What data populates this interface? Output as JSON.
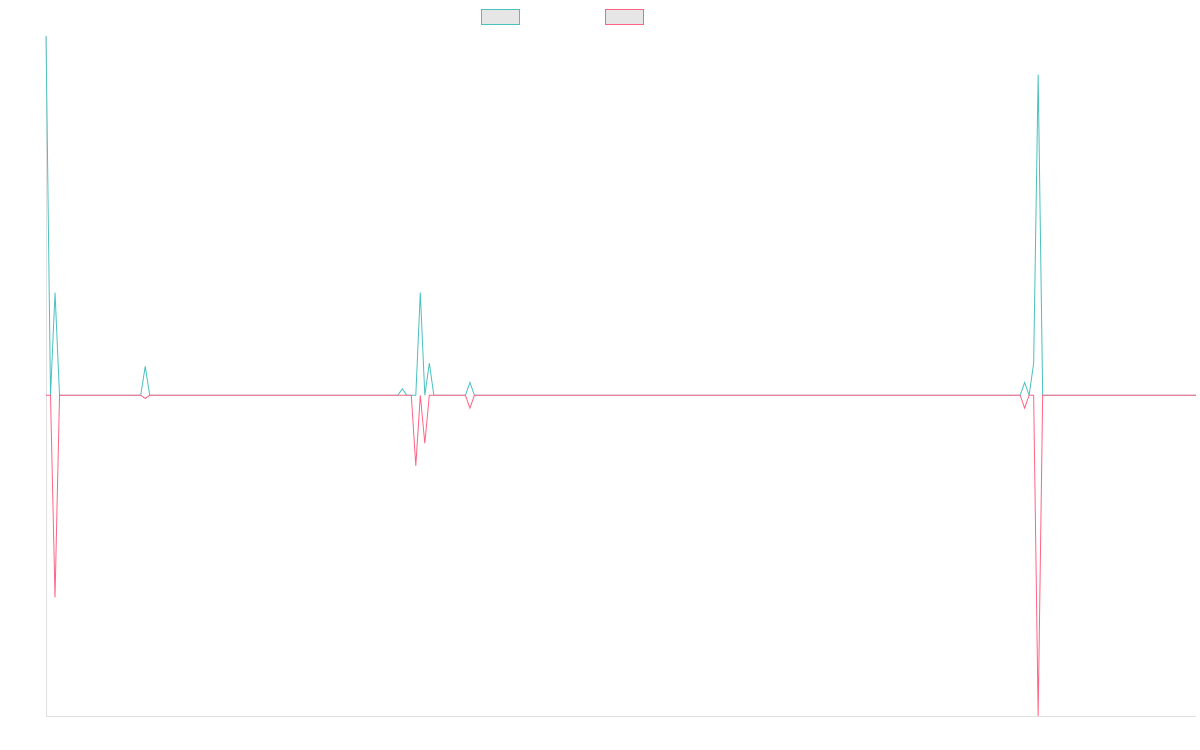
{
  "chart_data": {
    "type": "line",
    "title": "",
    "xlabel": "",
    "ylabel": "",
    "grid": false,
    "legend_position": "top-center",
    "x_count": 256,
    "ylim": [
      -500,
      560
    ],
    "series": [
      {
        "name": "",
        "color": "#4bc0c0",
        "fill": "#e6e6e6",
        "points": [
          [
            0,
            560
          ],
          [
            2,
            160
          ],
          [
            22,
            45
          ],
          [
            79,
            10
          ],
          [
            83,
            160
          ],
          [
            85,
            50
          ],
          [
            94,
            20
          ],
          [
            217,
            20
          ],
          [
            219,
            50
          ],
          [
            220,
            500
          ]
        ]
      },
      {
        "name": "",
        "color": "#ff6384",
        "fill": "#e6e6e6",
        "points": [
          [
            2,
            -315
          ],
          [
            22,
            -5
          ],
          [
            82,
            -110
          ],
          [
            84,
            -75
          ],
          [
            94,
            -20
          ],
          [
            217,
            -20
          ],
          [
            220,
            -500
          ]
        ]
      }
    ]
  }
}
